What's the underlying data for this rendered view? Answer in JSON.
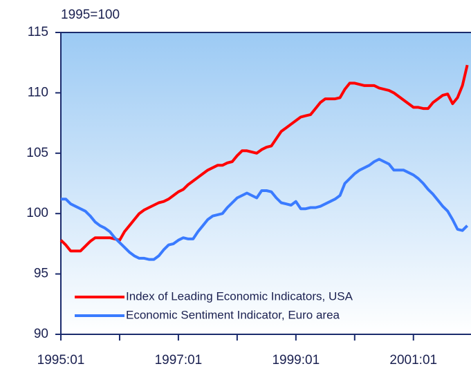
{
  "chart_data": {
    "type": "line",
    "subtitle": "1995=100",
    "categories": [
      "1995:01",
      null,
      null,
      null,
      null,
      null,
      null,
      null,
      null,
      null,
      null,
      null,
      null,
      null,
      null,
      null,
      null,
      null,
      null,
      null,
      null,
      null,
      null,
      null,
      "1997:01",
      null,
      null,
      null,
      null,
      null,
      null,
      null,
      null,
      null,
      null,
      null,
      null,
      null,
      null,
      null,
      null,
      null,
      null,
      null,
      null,
      null,
      null,
      null,
      "1999:01",
      null,
      null,
      null,
      null,
      null,
      null,
      null,
      null,
      null,
      null,
      null,
      null,
      null,
      null,
      null,
      null,
      null,
      null,
      null,
      null,
      null,
      null,
      null,
      "2001:01",
      null,
      null,
      null,
      null,
      null,
      null,
      null,
      null,
      null,
      null,
      null
    ],
    "series": [
      {
        "name": "Index of Leading Economic Indicators, USA",
        "color": "#ff0000",
        "values": [
          97.8,
          97.4,
          96.9,
          96.9,
          96.9,
          97.3,
          97.7,
          98.0,
          98.0,
          98.0,
          98.0,
          97.9,
          97.8,
          98.5,
          99.0,
          99.5,
          100.0,
          100.3,
          100.5,
          100.7,
          100.9,
          101.0,
          101.2,
          101.5,
          101.8,
          102.0,
          102.4,
          102.7,
          103.0,
          103.3,
          103.6,
          103.8,
          104.0,
          104.0,
          104.2,
          104.3,
          104.8,
          105.2,
          105.2,
          105.1,
          105.0,
          105.3,
          105.5,
          105.6,
          106.2,
          106.8,
          107.1,
          107.4,
          107.7,
          108.0,
          108.1,
          108.2,
          108.7,
          109.2,
          109.5,
          109.5,
          109.5,
          109.6,
          110.3,
          110.8,
          110.8,
          110.7,
          110.6,
          110.6,
          110.6,
          110.4,
          110.3,
          110.2,
          110.0,
          109.7,
          109.4,
          109.1,
          108.8,
          108.8,
          108.7,
          108.7,
          109.2,
          109.5,
          109.8,
          109.9,
          109.1,
          109.6,
          110.6,
          112.3
        ]
      },
      {
        "name": "Economic Sentiment Indicator, Euro area",
        "color": "#3a7bff",
        "values": [
          101.2,
          101.2,
          100.8,
          100.6,
          100.4,
          100.2,
          99.8,
          99.3,
          99.0,
          98.8,
          98.5,
          98.0,
          97.6,
          97.2,
          96.8,
          96.5,
          96.3,
          96.3,
          96.2,
          96.2,
          96.5,
          97.0,
          97.4,
          97.5,
          97.8,
          98.0,
          97.9,
          97.9,
          98.5,
          99.0,
          99.5,
          99.8,
          99.9,
          100.0,
          100.5,
          100.9,
          101.3,
          101.5,
          101.7,
          101.5,
          101.3,
          101.9,
          101.9,
          101.8,
          101.3,
          100.9,
          100.8,
          100.7,
          101.0,
          100.4,
          100.4,
          100.5,
          100.5,
          100.6,
          100.8,
          101.0,
          101.2,
          101.5,
          102.5,
          102.9,
          103.3,
          103.6,
          103.8,
          104.0,
          104.3,
          104.5,
          104.3,
          104.1,
          103.6,
          103.6,
          103.6,
          103.4,
          103.2,
          102.9,
          102.5,
          102.0,
          101.6,
          101.1,
          100.6,
          100.2,
          99.5,
          98.7,
          98.6,
          99.0
        ]
      }
    ],
    "ylim": [
      90,
      115
    ],
    "yticks": [
      90,
      95,
      100,
      105,
      110,
      115
    ],
    "legend": "lower left"
  }
}
